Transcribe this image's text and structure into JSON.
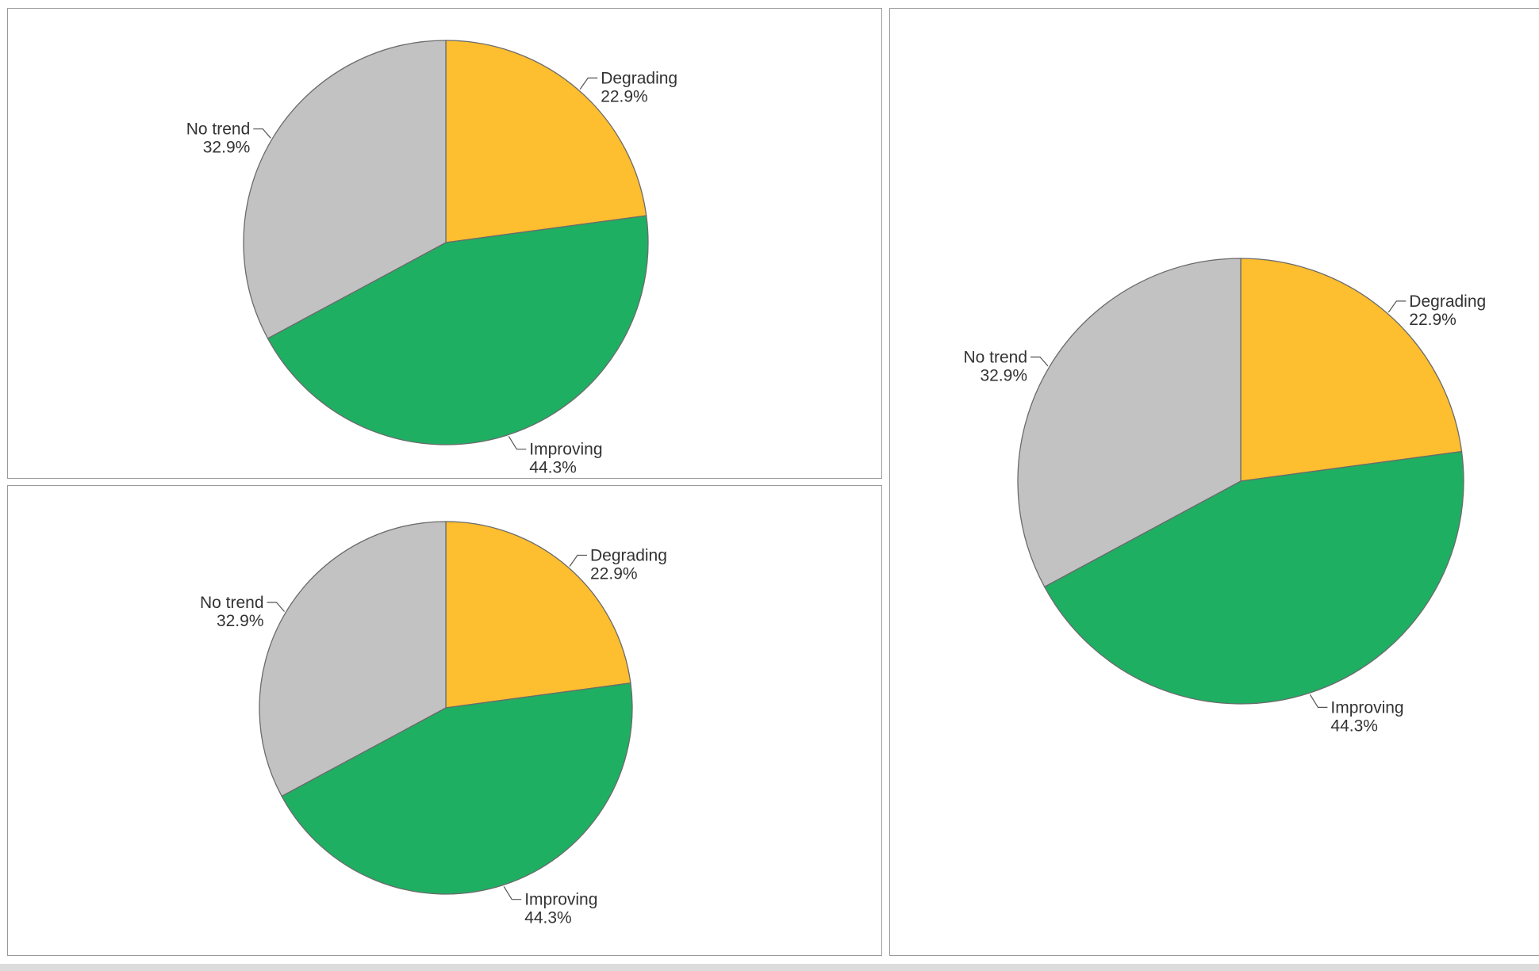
{
  "colors": {
    "degrading": "#FDBE2F",
    "improving": "#1EAF63",
    "no_trend": "#C3C2C3"
  },
  "chart_data": [
    {
      "type": "pie",
      "title": "",
      "slices": [
        {
          "label": "Degrading",
          "value": 22.9,
          "value_label": "22.9%",
          "color": "#FDBE2F"
        },
        {
          "label": "Improving",
          "value": 44.3,
          "value_label": "44.3%",
          "color": "#1EAF63"
        },
        {
          "label": "No trend",
          "value": 32.9,
          "value_label": "32.9%",
          "color": "#C3C2C3"
        }
      ]
    },
    {
      "type": "pie",
      "title": "",
      "slices": [
        {
          "label": "Degrading",
          "value": 22.9,
          "value_label": "22.9%",
          "color": "#FDBE2F"
        },
        {
          "label": "Improving",
          "value": 44.3,
          "value_label": "44.3%",
          "color": "#1EAF63"
        },
        {
          "label": "No trend",
          "value": 32.9,
          "value_label": "32.9%",
          "color": "#C3C2C3"
        }
      ]
    },
    {
      "type": "pie",
      "title": "",
      "slices": [
        {
          "label": "Degrading",
          "value": 22.9,
          "value_label": "22.9%",
          "color": "#FDBE2F"
        },
        {
          "label": "Improving",
          "value": 44.3,
          "value_label": "44.3%",
          "color": "#1EAF63"
        },
        {
          "label": "No trend",
          "value": 32.9,
          "value_label": "32.9%",
          "color": "#C3C2C3"
        }
      ]
    }
  ]
}
